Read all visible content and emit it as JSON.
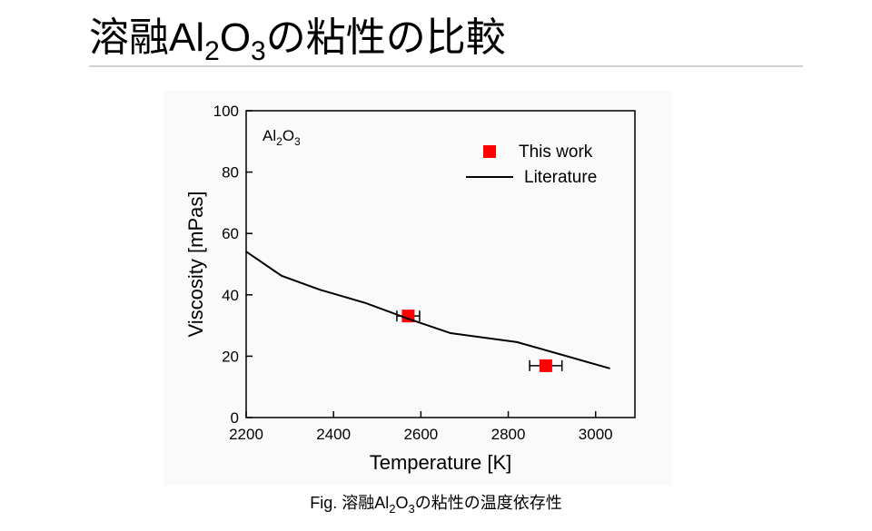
{
  "slide_title": [
    "溶融Al",
    "2",
    "O",
    "3",
    "の粘性の比較"
  ],
  "caption": [
    "Fig. 溶融Al",
    "2",
    "O",
    "3",
    "の粘性の温度依存性"
  ],
  "chart_data": {
    "type": "line",
    "annotation": [
      "Al",
      "2",
      "O",
      "3"
    ],
    "x_label": "Temperature [K]",
    "y_label": "Viscosity [mPas]",
    "xlim": [
      2200,
      3090
    ],
    "ylim": [
      0,
      100
    ],
    "xticks": [
      2200,
      2400,
      2600,
      2800,
      3000
    ],
    "yticks": [
      0,
      20,
      40,
      60,
      80,
      100
    ],
    "legend": "upper right",
    "series": [
      {
        "name": "This work",
        "type": "scatter",
        "color": "#ff0000",
        "x": [
          2571,
          2886
        ],
        "values": [
          33.1,
          16.9
        ],
        "xerr": [
          26,
          37
        ]
      },
      {
        "name": "Literature",
        "type": "line",
        "color": "#000000",
        "x": [
          2200,
          2281,
          2368,
          2474,
          2571,
          2668,
          2820,
          3033
        ],
        "values": [
          54.1,
          46.2,
          41.7,
          37.3,
          32.2,
          27.5,
          24.6,
          16.0
        ]
      }
    ]
  }
}
